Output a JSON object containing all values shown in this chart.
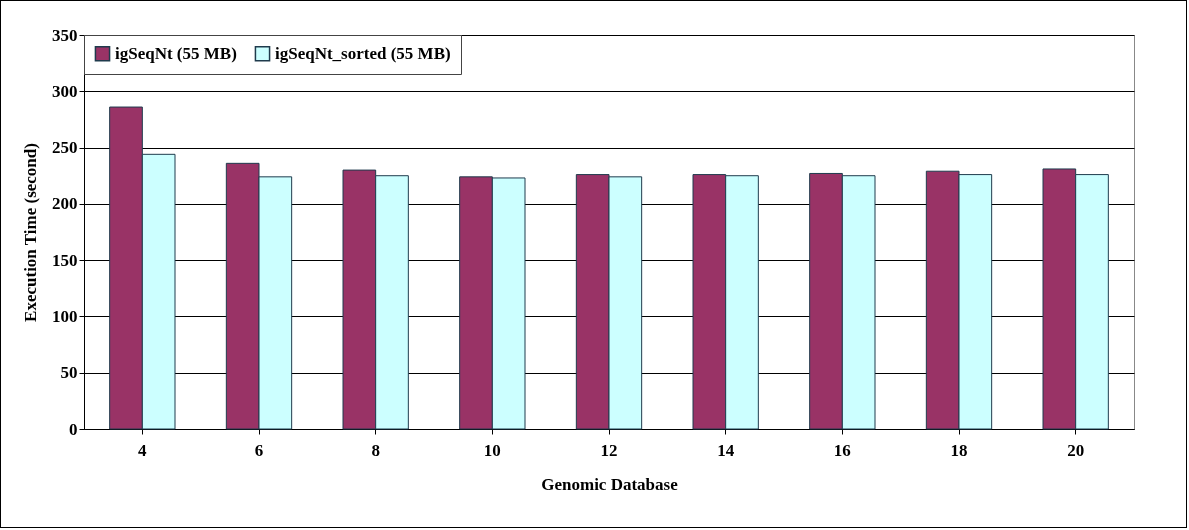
{
  "chart_data": {
    "type": "bar",
    "xlabel": "Genomic Database",
    "ylabel": "Execution Time (second)",
    "categories": [
      "4",
      "6",
      "8",
      "10",
      "12",
      "14",
      "16",
      "18",
      "20"
    ],
    "series": [
      {
        "name": "igSeqNt (55 MB)",
        "color": "#993366",
        "values": [
          286,
          236,
          230,
          224,
          226,
          226,
          227,
          229,
          231
        ]
      },
      {
        "name": "igSeqNt_sorted (55 MB)",
        "color": "#ccffff",
        "values": [
          244,
          224,
          225,
          223,
          224,
          225,
          225,
          226,
          226
        ]
      }
    ],
    "ylim": [
      0,
      350
    ],
    "yticks": [
      0,
      50,
      100,
      150,
      200,
      250,
      300,
      350
    ],
    "grid": "y",
    "legend": "top left"
  }
}
